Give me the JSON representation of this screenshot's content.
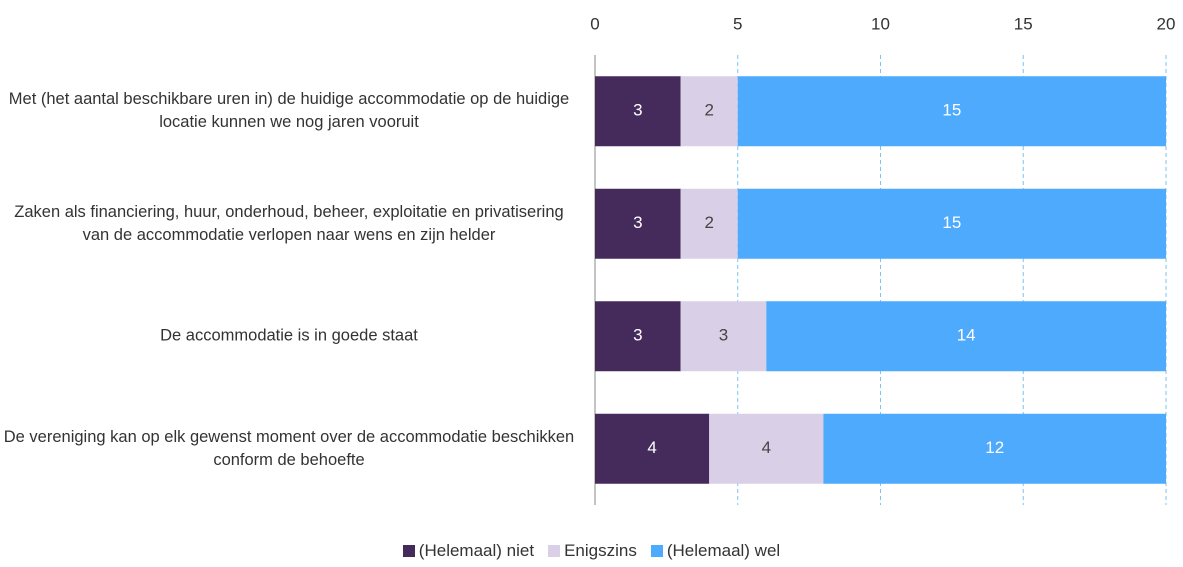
{
  "chart_data": {
    "type": "stacked_bar_horizontal",
    "categories": [
      "Met (het aantal beschikbare uren in) de huidige accommodatie op de huidige locatie kunnen we nog jaren vooruit",
      "Zaken als financiering, huur, onderhoud, beheer, exploitatie en privatisering van de accommodatie verlopen naar wens en zijn helder",
      "De accommodatie is in goede staat",
      "De vereniging kan op elk gewenst moment over de accommodatie beschikken conform de behoefte"
    ],
    "series": [
      {
        "name": "(Helemaal) niet",
        "color": "#452b5c",
        "label_color": "#ffffff",
        "values": [
          3,
          3,
          3,
          4
        ]
      },
      {
        "name": "Enigszins",
        "color": "#d9d0e7",
        "label_color": "#444444",
        "values": [
          2,
          2,
          3,
          4
        ]
      },
      {
        "name": "(Helemaal) wel",
        "color": "#4eaafc",
        "label_color": "#ffffff",
        "values": [
          15,
          15,
          14,
          12
        ]
      }
    ],
    "xlim": [
      0,
      20
    ],
    "xticks": [
      0,
      5,
      10,
      15,
      20
    ],
    "grid": true,
    "legend": "bottom"
  }
}
